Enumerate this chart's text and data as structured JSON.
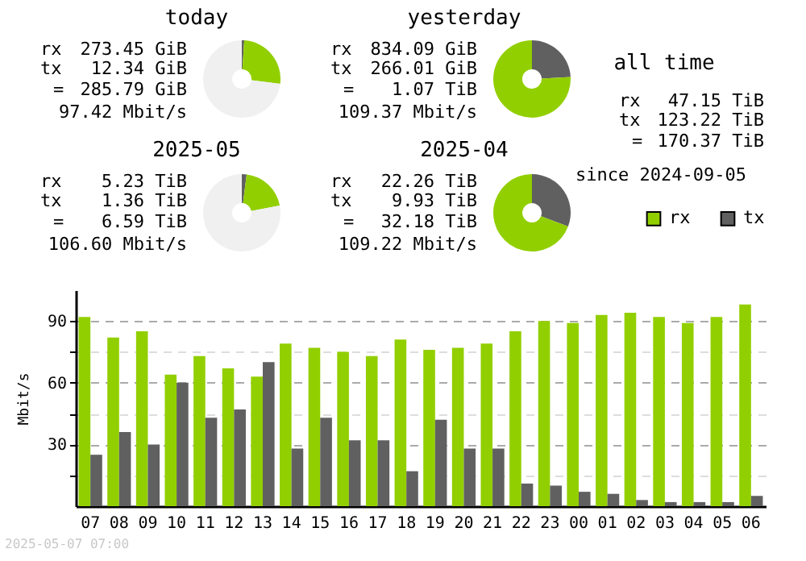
{
  "chart_data": [
    {
      "type": "donut",
      "title": "today",
      "categories": [
        null,
        null,
        null
      ],
      "values": [
        1,
        26,
        73
      ],
      "colors": [
        "#606060",
        "#92cf00",
        "#f0f0f0"
      ],
      "annotations": [
        "rx",
        "273.45 GiB",
        "tx",
        "12.34 GiB",
        "=",
        "285.79 GiB",
        "97.42 Mbit/s"
      ]
    },
    {
      "type": "donut",
      "title": "yesterday",
      "categories": [
        null,
        null
      ],
      "values": [
        24.2,
        75.8
      ],
      "colors": [
        "#606060",
        "#92cf00"
      ],
      "annotations": [
        "rx",
        "834.09 GiB",
        "tx",
        "266.01 GiB",
        "=",
        "1.07 TiB",
        "109.37 Mbit/s"
      ]
    },
    {
      "type": "other",
      "title": "all time",
      "annotations": [
        "rx",
        "47.15 TiB",
        "tx",
        "123.22 TiB",
        "=",
        "170.37 TiB",
        "since 2024-09-05"
      ]
    },
    {
      "type": "donut",
      "title": "2025-05",
      "categories": [
        null,
        null,
        null
      ],
      "values": [
        2,
        20,
        78
      ],
      "colors": [
        "#606060",
        "#92cf00",
        "#f0f0f0"
      ],
      "annotations": [
        "rx",
        "5.23 TiB",
        "tx",
        "1.36 TiB",
        "=",
        "6.59 TiB",
        "106.60 Mbit/s"
      ]
    },
    {
      "type": "donut",
      "title": "2025-04",
      "categories": [
        null,
        null
      ],
      "values": [
        30.8,
        69.2
      ],
      "colors": [
        "#606060",
        "#92cf00"
      ],
      "annotations": [
        "rx",
        "22.26 TiB",
        "tx",
        "9.93 TiB",
        "=",
        "32.18 TiB",
        "109.22 Mbit/s"
      ]
    },
    {
      "type": "bar",
      "ylabel": "Mbit/s",
      "categories": [
        "07",
        "08",
        "09",
        "10",
        "11",
        "12",
        "13",
        "14",
        "15",
        "16",
        "17",
        "18",
        "19",
        "20",
        "21",
        "22",
        "23",
        "00",
        "01",
        "02",
        "03",
        "04",
        "05",
        "06"
      ],
      "series": [
        {
          "name": "rx",
          "color": "#92cf00",
          "values": [
            92,
            82,
            85,
            64,
            73,
            67,
            63,
            79,
            77,
            75,
            73,
            81,
            76,
            77,
            79,
            85,
            90,
            89,
            93,
            94,
            92,
            89,
            92,
            98
          ]
        },
        {
          "name": "tx",
          "color": "#606060",
          "values": [
            25,
            36,
            30,
            60,
            43,
            47,
            70,
            28,
            43,
            32,
            32,
            17,
            42,
            28,
            28,
            11,
            10,
            7,
            6,
            3,
            2,
            2,
            2,
            5
          ]
        }
      ],
      "ylim": [
        0,
        105
      ],
      "yticks": [
        {
          "value": 15,
          "label": null
        },
        30,
        {
          "value": 45,
          "label": null
        },
        60,
        {
          "value": 75,
          "label": null
        },
        90
      ],
      "grid": "y",
      "legend": "top right",
      "annotations": [
        "2025-05-07 07:00"
      ]
    }
  ]
}
